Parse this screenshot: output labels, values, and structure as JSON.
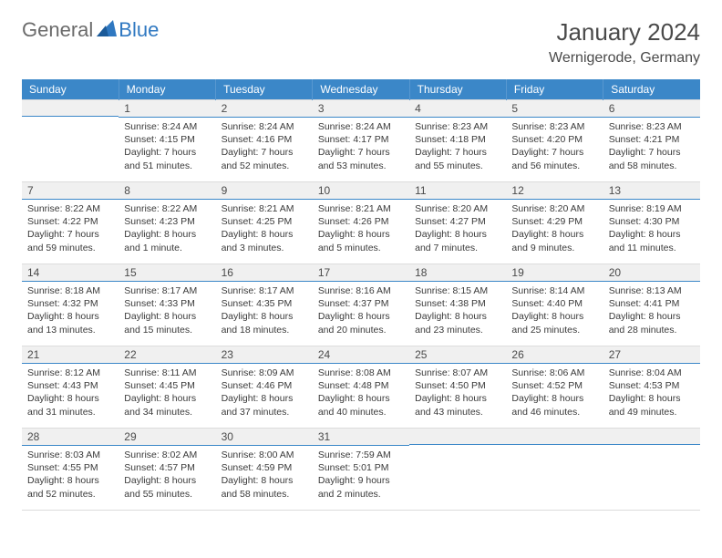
{
  "logo": {
    "part1": "General",
    "part2": "Blue"
  },
  "title": "January 2024",
  "subtitle": "Wernigerode, Germany",
  "colors": {
    "header_bg": "#3b87c8",
    "header_fg": "#ffffff",
    "daynum_bg": "#f0f0f0",
    "text": "#3a3a3a",
    "accent": "#3b87c8"
  },
  "daysOfWeek": [
    "Sunday",
    "Monday",
    "Tuesday",
    "Wednesday",
    "Thursday",
    "Friday",
    "Saturday"
  ],
  "weeks": [
    [
      null,
      {
        "n": "1",
        "sunrise": "8:24 AM",
        "sunset": "4:15 PM",
        "daylight": "7 hours and 51 minutes."
      },
      {
        "n": "2",
        "sunrise": "8:24 AM",
        "sunset": "4:16 PM",
        "daylight": "7 hours and 52 minutes."
      },
      {
        "n": "3",
        "sunrise": "8:24 AM",
        "sunset": "4:17 PM",
        "daylight": "7 hours and 53 minutes."
      },
      {
        "n": "4",
        "sunrise": "8:23 AM",
        "sunset": "4:18 PM",
        "daylight": "7 hours and 55 minutes."
      },
      {
        "n": "5",
        "sunrise": "8:23 AM",
        "sunset": "4:20 PM",
        "daylight": "7 hours and 56 minutes."
      },
      {
        "n": "6",
        "sunrise": "8:23 AM",
        "sunset": "4:21 PM",
        "daylight": "7 hours and 58 minutes."
      }
    ],
    [
      {
        "n": "7",
        "sunrise": "8:22 AM",
        "sunset": "4:22 PM",
        "daylight": "7 hours and 59 minutes."
      },
      {
        "n": "8",
        "sunrise": "8:22 AM",
        "sunset": "4:23 PM",
        "daylight": "8 hours and 1 minute."
      },
      {
        "n": "9",
        "sunrise": "8:21 AM",
        "sunset": "4:25 PM",
        "daylight": "8 hours and 3 minutes."
      },
      {
        "n": "10",
        "sunrise": "8:21 AM",
        "sunset": "4:26 PM",
        "daylight": "8 hours and 5 minutes."
      },
      {
        "n": "11",
        "sunrise": "8:20 AM",
        "sunset": "4:27 PM",
        "daylight": "8 hours and 7 minutes."
      },
      {
        "n": "12",
        "sunrise": "8:20 AM",
        "sunset": "4:29 PM",
        "daylight": "8 hours and 9 minutes."
      },
      {
        "n": "13",
        "sunrise": "8:19 AM",
        "sunset": "4:30 PM",
        "daylight": "8 hours and 11 minutes."
      }
    ],
    [
      {
        "n": "14",
        "sunrise": "8:18 AM",
        "sunset": "4:32 PM",
        "daylight": "8 hours and 13 minutes."
      },
      {
        "n": "15",
        "sunrise": "8:17 AM",
        "sunset": "4:33 PM",
        "daylight": "8 hours and 15 minutes."
      },
      {
        "n": "16",
        "sunrise": "8:17 AM",
        "sunset": "4:35 PM",
        "daylight": "8 hours and 18 minutes."
      },
      {
        "n": "17",
        "sunrise": "8:16 AM",
        "sunset": "4:37 PM",
        "daylight": "8 hours and 20 minutes."
      },
      {
        "n": "18",
        "sunrise": "8:15 AM",
        "sunset": "4:38 PM",
        "daylight": "8 hours and 23 minutes."
      },
      {
        "n": "19",
        "sunrise": "8:14 AM",
        "sunset": "4:40 PM",
        "daylight": "8 hours and 25 minutes."
      },
      {
        "n": "20",
        "sunrise": "8:13 AM",
        "sunset": "4:41 PM",
        "daylight": "8 hours and 28 minutes."
      }
    ],
    [
      {
        "n": "21",
        "sunrise": "8:12 AM",
        "sunset": "4:43 PM",
        "daylight": "8 hours and 31 minutes."
      },
      {
        "n": "22",
        "sunrise": "8:11 AM",
        "sunset": "4:45 PM",
        "daylight": "8 hours and 34 minutes."
      },
      {
        "n": "23",
        "sunrise": "8:09 AM",
        "sunset": "4:46 PM",
        "daylight": "8 hours and 37 minutes."
      },
      {
        "n": "24",
        "sunrise": "8:08 AM",
        "sunset": "4:48 PM",
        "daylight": "8 hours and 40 minutes."
      },
      {
        "n": "25",
        "sunrise": "8:07 AM",
        "sunset": "4:50 PM",
        "daylight": "8 hours and 43 minutes."
      },
      {
        "n": "26",
        "sunrise": "8:06 AM",
        "sunset": "4:52 PM",
        "daylight": "8 hours and 46 minutes."
      },
      {
        "n": "27",
        "sunrise": "8:04 AM",
        "sunset": "4:53 PM",
        "daylight": "8 hours and 49 minutes."
      }
    ],
    [
      {
        "n": "28",
        "sunrise": "8:03 AM",
        "sunset": "4:55 PM",
        "daylight": "8 hours and 52 minutes."
      },
      {
        "n": "29",
        "sunrise": "8:02 AM",
        "sunset": "4:57 PM",
        "daylight": "8 hours and 55 minutes."
      },
      {
        "n": "30",
        "sunrise": "8:00 AM",
        "sunset": "4:59 PM",
        "daylight": "8 hours and 58 minutes."
      },
      {
        "n": "31",
        "sunrise": "7:59 AM",
        "sunset": "5:01 PM",
        "daylight": "9 hours and 2 minutes."
      },
      null,
      null,
      null
    ]
  ],
  "labels": {
    "sunrise": "Sunrise: ",
    "sunset": "Sunset: ",
    "daylight": "Daylight: "
  }
}
